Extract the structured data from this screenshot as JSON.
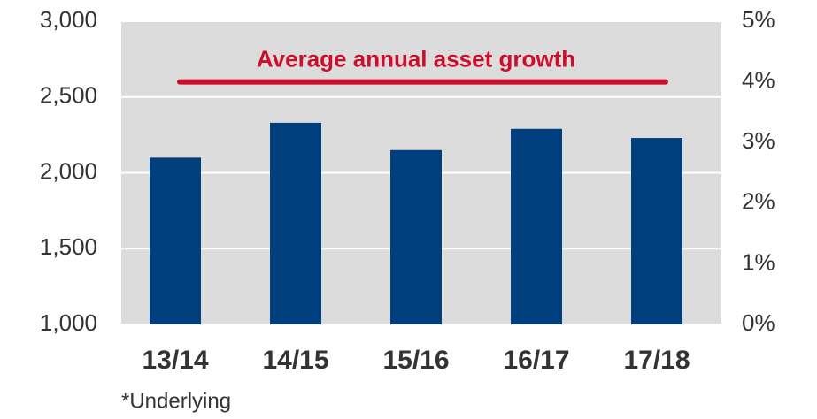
{
  "chart_data": {
    "type": "bar",
    "categories": [
      "13/14",
      "14/15",
      "15/16",
      "16/17",
      "17/18"
    ],
    "values": [
      2100,
      2330,
      2150,
      2290,
      2230
    ],
    "color": "#003f7d",
    "ylim": [
      1000,
      3000
    ],
    "yticks": [
      {
        "value": 1000,
        "label": "1,000"
      },
      {
        "value": 1500,
        "label": "1,500"
      },
      {
        "value": 2000,
        "label": "2,000"
      },
      {
        "value": 2500,
        "label": "2,500"
      },
      {
        "value": 3000,
        "label": "3,000"
      }
    ],
    "y2lim": [
      0,
      5
    ],
    "y2ticks": [
      {
        "value": 0,
        "label": "0%"
      },
      {
        "value": 1,
        "label": "1%"
      },
      {
        "value": 2,
        "label": "2%"
      },
      {
        "value": 3,
        "label": "3%"
      },
      {
        "value": 4,
        "label": "4%"
      },
      {
        "value": 5,
        "label": "5%"
      }
    ],
    "grid": true,
    "annotation": {
      "text": "Average annual asset growth",
      "axis": "y2",
      "value": 4,
      "color": "#c8102e"
    },
    "footnote": "*Underlying"
  }
}
